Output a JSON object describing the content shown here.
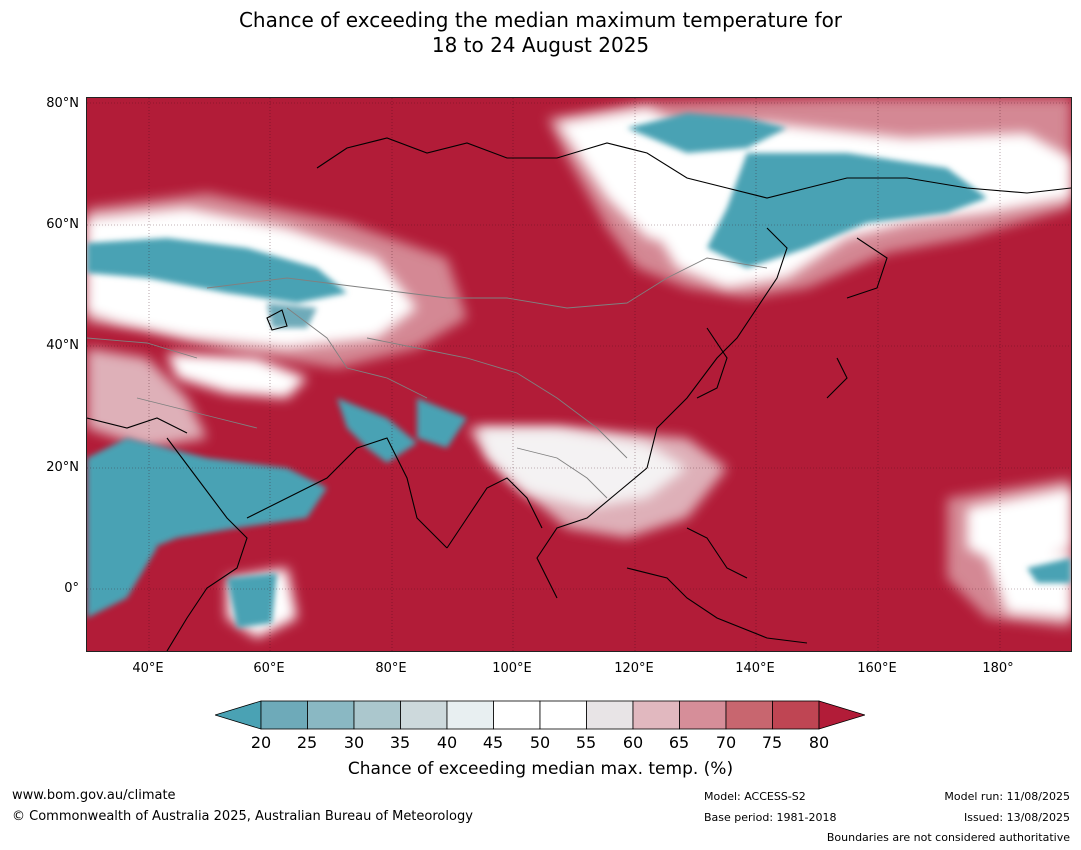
{
  "title": {
    "line1": "Chance of exceeding the median maximum temperature for",
    "line2": "18 to 24 August 2025"
  },
  "map": {
    "background_color": "#b21c38",
    "lat_ticks": [
      "80°N",
      "60°N",
      "40°N",
      "20°N",
      "0°"
    ],
    "lon_ticks": [
      "40°E",
      "60°E",
      "80°E",
      "100°E",
      "120°E",
      "140°E",
      "160°E",
      "180°"
    ]
  },
  "colorbar": {
    "labels": [
      "20",
      "25",
      "30",
      "35",
      "40",
      "45",
      "50",
      "55",
      "60",
      "65",
      "70",
      "75",
      "80"
    ],
    "colors": [
      "#4aa2b4",
      "#6eaab9",
      "#8ab8c3",
      "#abc7cd",
      "#cdd9dc",
      "#e8eff1",
      "#ffffff",
      "#ffffff",
      "#e8e4e6",
      "#e1b8bf",
      "#d68e99",
      "#c8666f",
      "#bf4553",
      "#b21c38"
    ],
    "title": "Chance of exceeding median max. temp. (%)"
  },
  "footer": {
    "url": "www.bom.gov.au/climate",
    "copyright": "© Commonwealth of Australia 2025, Australian Bureau of Meteorology",
    "model": "Model: ACCESS-S2",
    "base_period": "Base period: 1981-2018",
    "model_run": "Model run: 11/08/2025",
    "issued": "Issued: 13/08/2025",
    "boundaries": "Boundaries are not considered authoritative"
  }
}
